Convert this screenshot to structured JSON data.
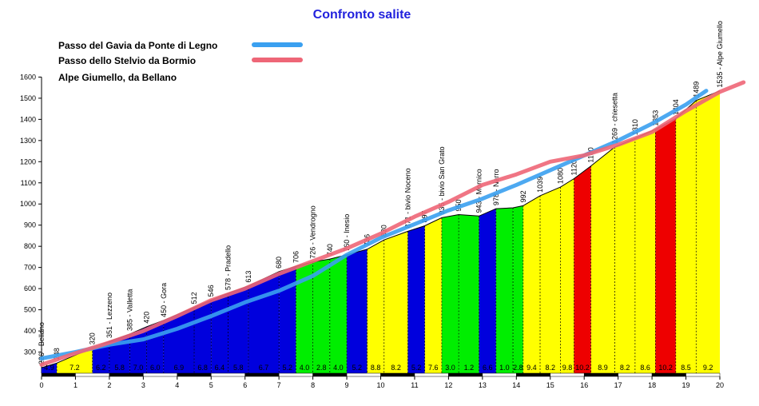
{
  "chart_data": {
    "type": "area",
    "title": "Confronto salite",
    "ylim": [
      200,
      1600
    ],
    "xlim": [
      0,
      20
    ],
    "y_ticks": [
      300,
      400,
      500,
      600,
      700,
      800,
      900,
      1000,
      1100,
      1200,
      1300,
      1400,
      1500,
      1600
    ],
    "x_ticks": [
      0,
      1,
      2,
      3,
      4,
      5,
      6,
      7,
      8,
      9,
      10,
      11,
      12,
      13,
      14,
      15,
      16,
      17,
      18,
      19,
      20
    ],
    "legend": [
      {
        "name": "Passo del Gavia da Ponte di Legno",
        "color": "#3aa0f0"
      },
      {
        "name": "Passo dello Stelvio da Bormio",
        "color": "#ee6677"
      },
      {
        "name": "Alpe Giumello, da Bellano",
        "color": ""
      }
    ],
    "profile": {
      "name": "Alpe Giumello, da Bellano",
      "points": [
        [
          0.0,
          226
        ],
        [
          0.45,
          248
        ],
        [
          1.5,
          320
        ],
        [
          2.0,
          351
        ],
        [
          2.6,
          385
        ],
        [
          3.1,
          420
        ],
        [
          3.6,
          450
        ],
        [
          4.5,
          512
        ],
        [
          5.0,
          546
        ],
        [
          5.5,
          578
        ],
        [
          6.1,
          613
        ],
        [
          7.0,
          680
        ],
        [
          7.5,
          706
        ],
        [
          8.0,
          726
        ],
        [
          8.5,
          740
        ],
        [
          9.0,
          760
        ],
        [
          9.6,
          786
        ],
        [
          10.1,
          830
        ],
        [
          10.8,
          871
        ],
        [
          11.3,
          897
        ],
        [
          11.8,
          935
        ],
        [
          12.3,
          950
        ],
        [
          12.9,
          943
        ],
        [
          13.4,
          978
        ],
        [
          13.9,
          982
        ],
        [
          14.2,
          992
        ],
        [
          14.7,
          1039
        ],
        [
          15.3,
          1080
        ],
        [
          15.7,
          1120
        ],
        [
          16.2,
          1180
        ],
        [
          16.9,
          1269
        ],
        [
          17.5,
          1310
        ],
        [
          18.1,
          1353
        ],
        [
          18.7,
          1404
        ],
        [
          19.3,
          1489
        ],
        [
          20.0,
          1535
        ]
      ],
      "segments": [
        {
          "from": 0.0,
          "to": 0.45,
          "color": "blue",
          "grad": "4.9"
        },
        {
          "from": 0.45,
          "to": 1.5,
          "color": "yellow",
          "grad": "7.2"
        },
        {
          "from": 1.5,
          "to": 2.0,
          "color": "blue",
          "grad": "6.2"
        },
        {
          "from": 2.0,
          "to": 2.6,
          "color": "blue",
          "grad": "5.8"
        },
        {
          "from": 2.6,
          "to": 3.1,
          "color": "blue",
          "grad": "7.0"
        },
        {
          "from": 3.1,
          "to": 3.6,
          "color": "blue",
          "grad": "6.0"
        },
        {
          "from": 3.6,
          "to": 4.5,
          "color": "blue",
          "grad": "6.9"
        },
        {
          "from": 4.5,
          "to": 5.0,
          "color": "blue",
          "grad": "6.8"
        },
        {
          "from": 5.0,
          "to": 5.5,
          "color": "blue",
          "grad": "6.4"
        },
        {
          "from": 5.5,
          "to": 6.1,
          "color": "blue",
          "grad": "5.8"
        },
        {
          "from": 6.1,
          "to": 7.0,
          "color": "blue",
          "grad": "6.7"
        },
        {
          "from": 7.0,
          "to": 7.5,
          "color": "blue",
          "grad": "5.2"
        },
        {
          "from": 7.5,
          "to": 8.0,
          "color": "green",
          "grad": "4.0"
        },
        {
          "from": 8.0,
          "to": 8.5,
          "color": "green",
          "grad": "2.8"
        },
        {
          "from": 8.5,
          "to": 9.0,
          "color": "green",
          "grad": "4.0"
        },
        {
          "from": 9.0,
          "to": 9.6,
          "color": "blue",
          "grad": "5.2"
        },
        {
          "from": 9.6,
          "to": 10.1,
          "color": "yellow",
          "grad": "8.8"
        },
        {
          "from": 10.1,
          "to": 10.8,
          "color": "yellow",
          "grad": "8.2"
        },
        {
          "from": 10.8,
          "to": 11.3,
          "color": "blue",
          "grad": "5.2"
        },
        {
          "from": 11.3,
          "to": 11.8,
          "color": "yellow",
          "grad": "7.6"
        },
        {
          "from": 11.8,
          "to": 12.3,
          "color": "green",
          "grad": "3.0"
        },
        {
          "from": 12.3,
          "to": 12.9,
          "color": "green",
          "grad": "1.2"
        },
        {
          "from": 12.9,
          "to": 13.4,
          "color": "blue",
          "grad": "6.6"
        },
        {
          "from": 13.4,
          "to": 13.9,
          "color": "green",
          "grad": "1.0"
        },
        {
          "from": 13.9,
          "to": 14.2,
          "color": "green",
          "grad": "2.8"
        },
        {
          "from": 14.2,
          "to": 14.7,
          "color": "yellow",
          "grad": "9.4"
        },
        {
          "from": 14.7,
          "to": 15.3,
          "color": "yellow",
          "grad": "8.2"
        },
        {
          "from": 15.3,
          "to": 15.7,
          "color": "yellow",
          "grad": "9.8"
        },
        {
          "from": 15.7,
          "to": 16.2,
          "color": "red",
          "grad": "10.2"
        },
        {
          "from": 16.2,
          "to": 16.9,
          "color": "yellow",
          "grad": "8.9"
        },
        {
          "from": 16.9,
          "to": 17.5,
          "color": "yellow",
          "grad": "8.2"
        },
        {
          "from": 17.5,
          "to": 18.1,
          "color": "yellow",
          "grad": "8.6"
        },
        {
          "from": 18.1,
          "to": 18.7,
          "color": "red",
          "grad": "10.2"
        },
        {
          "from": 18.7,
          "to": 19.3,
          "color": "yellow",
          "grad": "8.5"
        },
        {
          "from": 19.3,
          "to": 20.0,
          "color": "yellow",
          "grad": "9.2"
        }
      ],
      "annotations": [
        {
          "x": 0.0,
          "text": "226 - Bellano"
        },
        {
          "x": 0.45,
          "text": "248"
        },
        {
          "x": 1.5,
          "text": "320"
        },
        {
          "x": 2.0,
          "text": "351 - Lezzeno"
        },
        {
          "x": 2.6,
          "text": "385 - Valletta"
        },
        {
          "x": 3.1,
          "text": "420"
        },
        {
          "x": 3.6,
          "text": "450 - Gora"
        },
        {
          "x": 4.5,
          "text": "512"
        },
        {
          "x": 5.0,
          "text": "546"
        },
        {
          "x": 5.5,
          "text": "578 - Pradello"
        },
        {
          "x": 6.1,
          "text": "613"
        },
        {
          "x": 7.0,
          "text": "680"
        },
        {
          "x": 7.5,
          "text": "706"
        },
        {
          "x": 8.0,
          "text": "726 - Vendrogno"
        },
        {
          "x": 8.5,
          "text": "740"
        },
        {
          "x": 9.0,
          "text": "760 - Inesio"
        },
        {
          "x": 9.6,
          "text": "786"
        },
        {
          "x": 10.1,
          "text": "830"
        },
        {
          "x": 10.8,
          "text": "871 - bivio Noceno"
        },
        {
          "x": 11.3,
          "text": "897"
        },
        {
          "x": 11.8,
          "text": "935 - bivio San Grato"
        },
        {
          "x": 12.3,
          "text": "950"
        },
        {
          "x": 12.9,
          "text": "943 - Mornico"
        },
        {
          "x": 13.4,
          "text": "978 - Narro"
        },
        {
          "x": 14.2,
          "text": "992"
        },
        {
          "x": 14.7,
          "text": "1039"
        },
        {
          "x": 15.3,
          "text": "1080"
        },
        {
          "x": 15.7,
          "text": "1120"
        },
        {
          "x": 16.2,
          "text": "1180"
        },
        {
          "x": 16.9,
          "text": "1269 - chiesetta"
        },
        {
          "x": 17.5,
          "text": "1310"
        },
        {
          "x": 18.1,
          "text": "1353"
        },
        {
          "x": 18.7,
          "text": "1404"
        },
        {
          "x": 19.3,
          "text": "1489"
        },
        {
          "x": 20.0,
          "text": "1535 - Alpe Giumello"
        }
      ]
    },
    "series": [
      {
        "name": "Passo del Gavia da Ponte di Legno",
        "color": "#3aa0f0",
        "points": [
          [
            0.0,
            270
          ],
          [
            1.0,
            300
          ],
          [
            2.0,
            335
          ],
          [
            3.0,
            360
          ],
          [
            4.0,
            410
          ],
          [
            5.0,
            470
          ],
          [
            6.0,
            535
          ],
          [
            7.0,
            590
          ],
          [
            8.0,
            660
          ],
          [
            9.0,
            760
          ],
          [
            10.0,
            840
          ],
          [
            11.0,
            905
          ],
          [
            12.0,
            970
          ],
          [
            13.0,
            1025
          ],
          [
            14.0,
            1090
          ],
          [
            15.0,
            1160
          ],
          [
            16.0,
            1230
          ],
          [
            17.0,
            1300
          ],
          [
            18.0,
            1380
          ],
          [
            19.0,
            1470
          ],
          [
            19.6,
            1535
          ]
        ]
      },
      {
        "name": "Passo dello Stelvio da Bormio",
        "color": "#ee6677",
        "points": [
          [
            0.0,
            240
          ],
          [
            1.0,
            295
          ],
          [
            2.0,
            345
          ],
          [
            3.0,
            400
          ],
          [
            4.0,
            470
          ],
          [
            5.0,
            545
          ],
          [
            6.0,
            600
          ],
          [
            7.0,
            670
          ],
          [
            8.0,
            730
          ],
          [
            9.0,
            790
          ],
          [
            10.0,
            860
          ],
          [
            11.0,
            940
          ],
          [
            12.0,
            1010
          ],
          [
            13.0,
            1090
          ],
          [
            14.0,
            1140
          ],
          [
            15.0,
            1200
          ],
          [
            16.0,
            1230
          ],
          [
            17.0,
            1280
          ],
          [
            18.0,
            1340
          ],
          [
            19.0,
            1440
          ],
          [
            20.0,
            1530
          ],
          [
            20.7,
            1575
          ]
        ]
      }
    ]
  }
}
